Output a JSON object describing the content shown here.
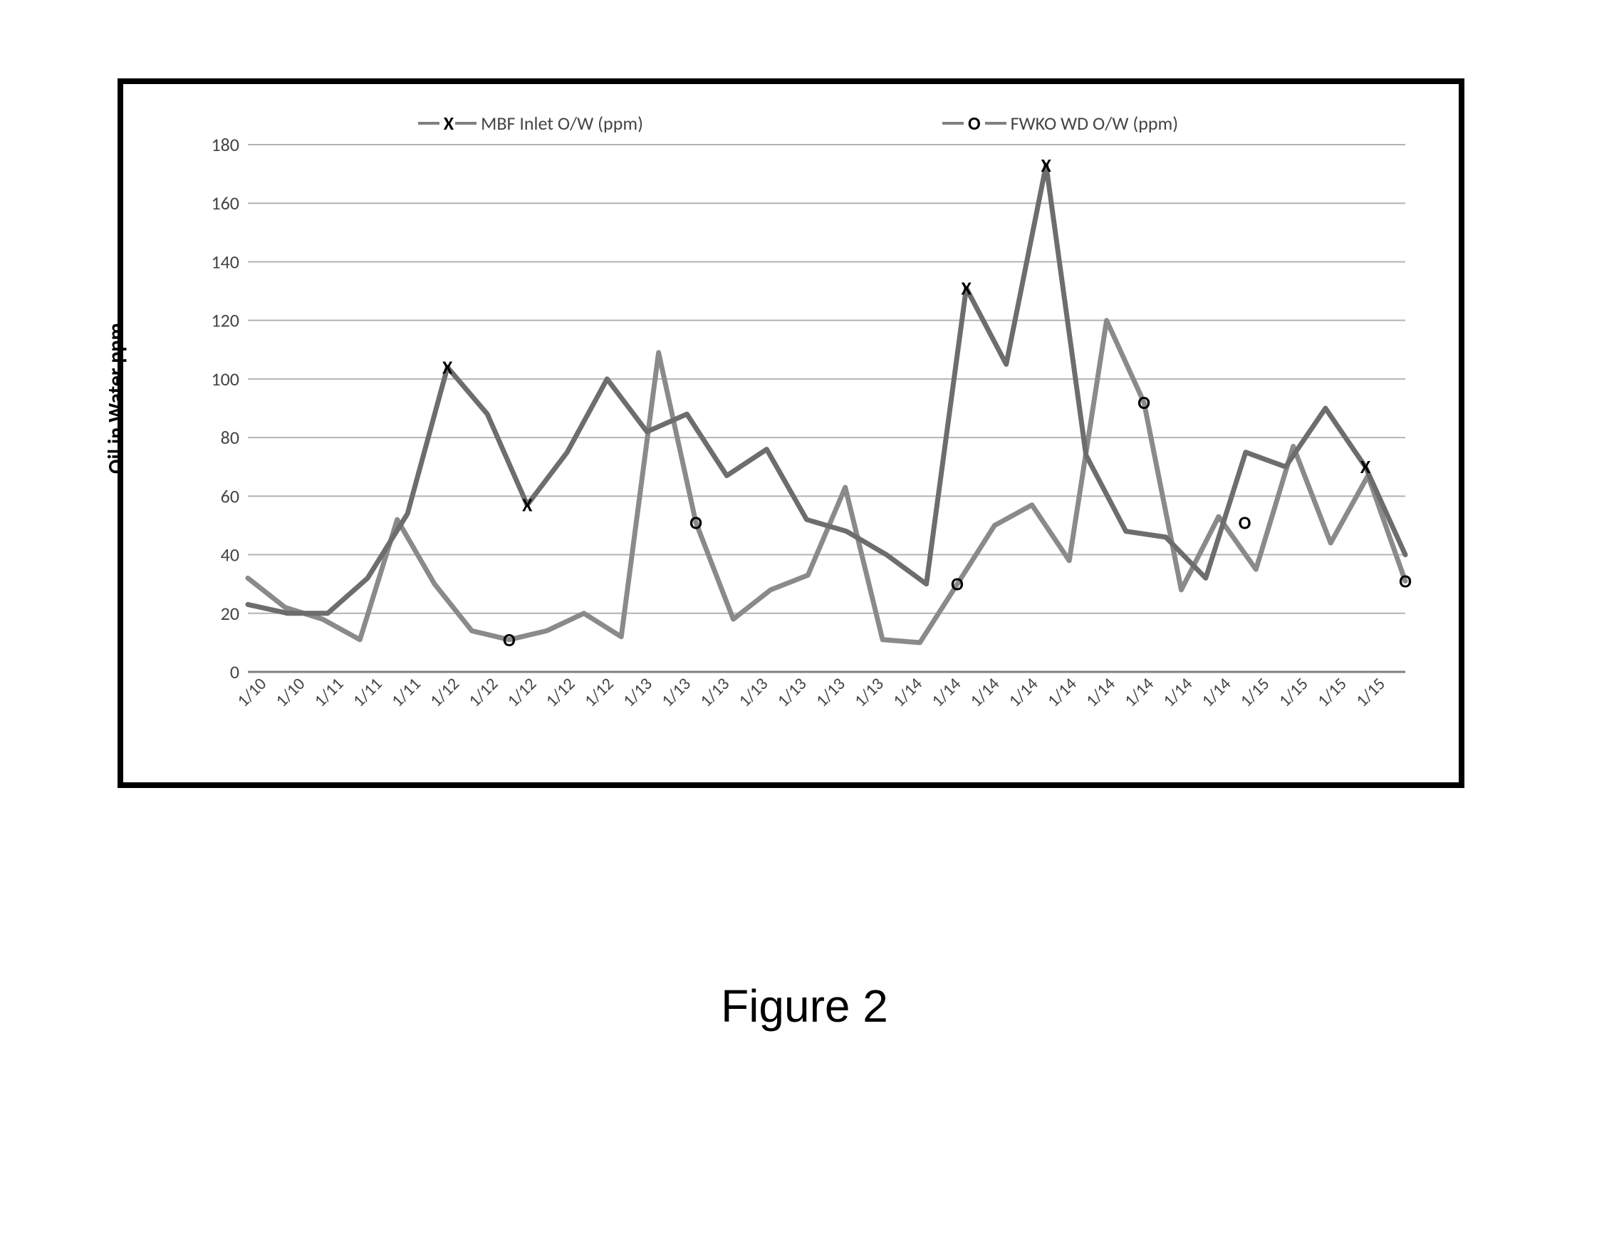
{
  "caption": "Figure 2",
  "chart": {
    "type": "line",
    "ylabel": "Oil in Water ppm",
    "ylim": [
      0,
      180
    ],
    "ytick_step": 20,
    "xlabels": [
      "1/10",
      "1/10",
      "1/11",
      "1/11",
      "1/11",
      "1/12",
      "1/12",
      "1/12",
      "1/12",
      "1/12",
      "1/13",
      "1/13",
      "1/13",
      "1/13",
      "1/13",
      "1/13",
      "1/13",
      "1/14",
      "1/14",
      "1/14",
      "1/14",
      "1/14",
      "1/14",
      "1/14",
      "1/14",
      "1/14",
      "1/15",
      "1/15",
      "1/15",
      "1/15"
    ],
    "xlabel_rotation": -45,
    "background_color": "#ffffff",
    "grid_color": "#b3b3b3",
    "series_colors": {
      "mbf": "#6d6d6d",
      "fwko": "#8a8a8a"
    },
    "line_width": 7,
    "legend": {
      "mbf": {
        "label": "MBF Inlet O/W (ppm)",
        "marker": "X"
      },
      "fwko": {
        "label": "FWKO WD O/W (ppm)",
        "marker": "O"
      }
    },
    "series": {
      "mbf": [
        23,
        20,
        20,
        32,
        54,
        104,
        88,
        57,
        75,
        100,
        82,
        88,
        67,
        76,
        52,
        48,
        40,
        30,
        131,
        105,
        173,
        74,
        48,
        46,
        32,
        75,
        70,
        90,
        70,
        40
      ],
      "fwko": [
        32,
        22,
        18,
        11,
        52,
        30,
        14,
        11,
        14,
        20,
        12,
        109,
        51,
        18,
        28,
        33,
        63,
        11,
        10,
        30,
        50,
        57,
        38,
        120,
        92,
        28,
        53,
        35,
        77,
        44,
        67,
        31
      ]
    },
    "markers": {
      "mbf": [
        {
          "i": 5,
          "y": 104
        },
        {
          "i": 7,
          "y": 57
        },
        {
          "i": 18,
          "y": 131
        },
        {
          "i": 20,
          "y": 173
        },
        {
          "i": 28,
          "y": 70
        }
      ],
      "fwko": [
        {
          "i": 7,
          "y": 11
        },
        {
          "i": 12,
          "y": 51
        },
        {
          "i": 19,
          "y": 30
        },
        {
          "i": 24,
          "y": 92
        },
        {
          "i": 26.7,
          "y": 51
        },
        {
          "i": 31,
          "y": 31
        }
      ]
    },
    "axis_font_size": 26,
    "ylabel_font_size": 30,
    "legend_font_size": 26
  }
}
